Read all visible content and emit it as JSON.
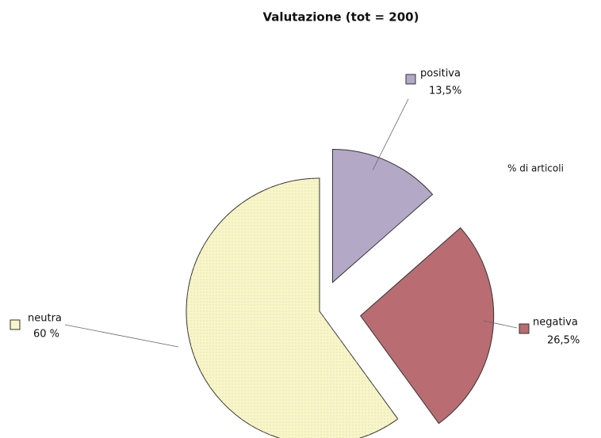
{
  "chart_data": {
    "type": "pie",
    "title": "Valutazione (tot = 200)",
    "annotation": "% di articoli",
    "categories": [
      "positiva",
      "negativa",
      "neutra"
    ],
    "values": [
      13.5,
      26.5,
      60
    ],
    "value_labels": [
      "13,5%",
      "26,5%",
      "60 %"
    ],
    "colors": [
      "#b3a9c6",
      "#b96d72",
      "#f8f5c8"
    ]
  }
}
